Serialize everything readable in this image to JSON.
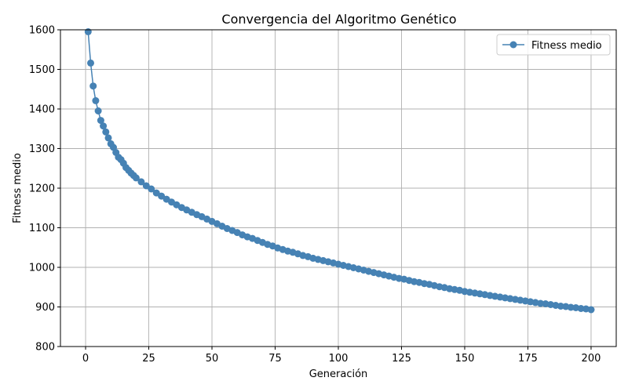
{
  "chart_data": {
    "type": "line",
    "title": "Convergencia del Algoritmo Genético",
    "xlabel": "Generación",
    "ylabel": "Fitness medio",
    "xlim": [
      -9.95,
      209.95
    ],
    "ylim": [
      800,
      1600
    ],
    "xticks": [
      0,
      25,
      50,
      75,
      100,
      125,
      150,
      175,
      200
    ],
    "yticks": [
      800,
      900,
      1000,
      1100,
      1200,
      1300,
      1400,
      1500,
      1600
    ],
    "grid": true,
    "legend_position": "top-right",
    "series": [
      {
        "name": "Fitness medio",
        "color": "#4682b4",
        "marker": "circle",
        "x": [
          1,
          2,
          3,
          4,
          5,
          6,
          7,
          8,
          9,
          10,
          11,
          12,
          13,
          14,
          15,
          16,
          17,
          18,
          19,
          20,
          22,
          24,
          26,
          28,
          30,
          32,
          34,
          36,
          38,
          40,
          42,
          44,
          46,
          48,
          50,
          52,
          54,
          56,
          58,
          60,
          62,
          64,
          66,
          68,
          70,
          72,
          74,
          76,
          78,
          80,
          82,
          84,
          86,
          88,
          90,
          92,
          94,
          96,
          98,
          100,
          102,
          104,
          106,
          108,
          110,
          112,
          114,
          116,
          118,
          120,
          122,
          124,
          126,
          128,
          130,
          132,
          134,
          136,
          138,
          140,
          142,
          144,
          146,
          148,
          150,
          152,
          154,
          156,
          158,
          160,
          162,
          164,
          166,
          168,
          170,
          172,
          174,
          176,
          178,
          180,
          182,
          184,
          186,
          188,
          190,
          192,
          194,
          196,
          198,
          200
        ],
        "y": [
          1595,
          1516,
          1458,
          1421,
          1395,
          1371,
          1357,
          1342,
          1327,
          1312,
          1303,
          1290,
          1278,
          1272,
          1263,
          1252,
          1245,
          1238,
          1232,
          1226,
          1216,
          1206,
          1198,
          1188,
          1180,
          1172,
          1165,
          1158,
          1151,
          1145,
          1139,
          1133,
          1128,
          1122,
          1116,
          1110,
          1104,
          1098,
          1093,
          1088,
          1082,
          1077,
          1073,
          1068,
          1063,
          1058,
          1054,
          1049,
          1045,
          1041,
          1038,
          1034,
          1030,
          1027,
          1023,
          1020,
          1017,
          1014,
          1011,
          1008,
          1005,
          1002,
          999,
          996,
          993,
          990,
          987,
          984,
          981,
          978,
          975,
          972,
          970,
          967,
          964,
          962,
          959,
          957,
          954,
          951,
          949,
          946,
          944,
          942,
          939,
          937,
          935,
          933,
          931,
          929,
          927,
          925,
          923,
          921,
          919,
          917,
          915,
          913,
          911,
          909,
          908,
          906,
          904,
          902,
          901,
          899,
          898,
          896,
          895,
          893
        ]
      }
    ]
  }
}
